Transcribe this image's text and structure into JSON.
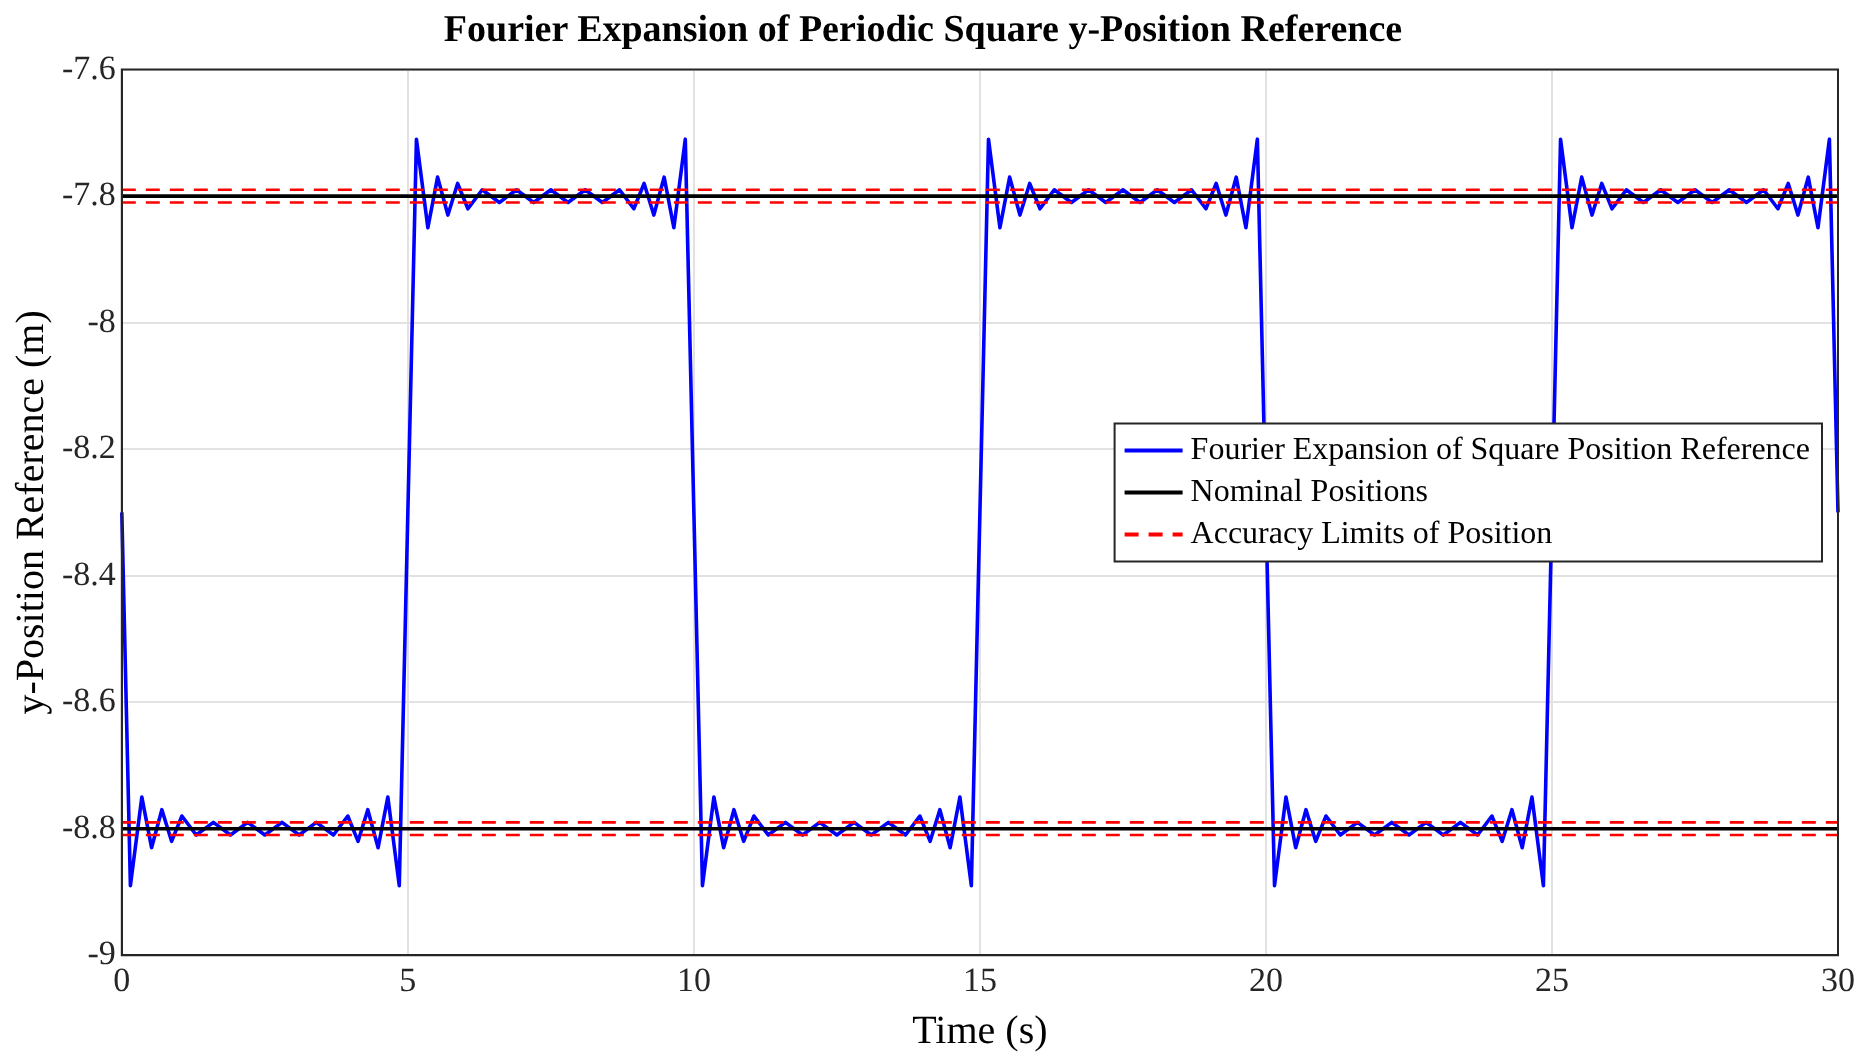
{
  "chart_data": {
    "type": "line",
    "title": "Fourier Expansion of Periodic Square y-Position Reference",
    "xlabel": "Time (s)",
    "ylabel": "y-Position Reference (m)",
    "xlim": [
      0,
      30
    ],
    "xticks": [
      0,
      5,
      10,
      15,
      20,
      25,
      30
    ],
    "ylim": [
      -9,
      -7.6
    ],
    "yticks": [
      -9,
      -8.8,
      -8.6,
      -8.4,
      -8.2,
      -8,
      -7.8,
      -7.6
    ],
    "grid": true,
    "legend": "right",
    "marker": "none",
    "series": [
      {
        "name": "Fourier Expansion of Square Position Reference",
        "color": "#0000ff",
        "line_style": "solid",
        "x": [
          0,
          0.15,
          0.35,
          0.52,
          0.7,
          0.87,
          1.05,
          1.3,
          1.6,
          1.9,
          2.2,
          2.5,
          2.8,
          3.1,
          3.4,
          3.7,
          3.95,
          4.13,
          4.3,
          4.48,
          4.65,
          4.85,
          5,
          5.15,
          5.35,
          5.52,
          5.7,
          5.87,
          6.05,
          6.3,
          6.6,
          6.9,
          7.2,
          7.5,
          7.8,
          8.1,
          8.4,
          8.7,
          8.95,
          9.13,
          9.3,
          9.48,
          9.65,
          9.85,
          10,
          10.15,
          10.35,
          10.52,
          10.7,
          10.87,
          11.05,
          11.3,
          11.6,
          11.9,
          12.2,
          12.5,
          12.8,
          13.1,
          13.4,
          13.7,
          13.95,
          14.13,
          14.3,
          14.48,
          14.65,
          14.85,
          15,
          15.15,
          15.35,
          15.52,
          15.7,
          15.87,
          16.05,
          16.3,
          16.6,
          16.9,
          17.2,
          17.5,
          17.8,
          18.1,
          18.4,
          18.7,
          18.95,
          19.13,
          19.3,
          19.48,
          19.65,
          19.85,
          20,
          20.15,
          20.35,
          20.52,
          20.7,
          20.87,
          21.05,
          21.3,
          21.6,
          21.9,
          22.2,
          22.5,
          22.8,
          23.1,
          23.4,
          23.7,
          23.95,
          24.13,
          24.3,
          24.48,
          24.65,
          24.85,
          25,
          25.15,
          25.35,
          25.52,
          25.7,
          25.87,
          26.05,
          26.3,
          26.6,
          26.9,
          27.2,
          27.5,
          27.8,
          28.1,
          28.4,
          28.7,
          28.95,
          29.13,
          29.3,
          29.48,
          29.65,
          29.85,
          30
        ],
        "values": [
          -8.3,
          -8.89,
          -8.75,
          -8.83,
          -8.77,
          -8.82,
          -8.78,
          -8.81,
          -8.79,
          -8.81,
          -8.79,
          -8.81,
          -8.79,
          -8.81,
          -8.79,
          -8.81,
          -8.78,
          -8.82,
          -8.77,
          -8.83,
          -8.75,
          -8.89,
          -8.3,
          -7.71,
          -7.85,
          -7.77,
          -7.83,
          -7.78,
          -7.82,
          -7.79,
          -7.81,
          -7.79,
          -7.81,
          -7.79,
          -7.81,
          -7.79,
          -7.81,
          -7.79,
          -7.82,
          -7.78,
          -7.83,
          -7.77,
          -7.85,
          -7.71,
          -8.3,
          -8.89,
          -8.75,
          -8.83,
          -8.77,
          -8.82,
          -8.78,
          -8.81,
          -8.79,
          -8.81,
          -8.79,
          -8.81,
          -8.79,
          -8.81,
          -8.79,
          -8.81,
          -8.78,
          -8.82,
          -8.77,
          -8.83,
          -8.75,
          -8.89,
          -8.3,
          -7.71,
          -7.85,
          -7.77,
          -7.83,
          -7.78,
          -7.82,
          -7.79,
          -7.81,
          -7.79,
          -7.81,
          -7.79,
          -7.81,
          -7.79,
          -7.81,
          -7.79,
          -7.82,
          -7.78,
          -7.83,
          -7.77,
          -7.85,
          -7.71,
          null,
          -8.89,
          -8.75,
          -8.83,
          -8.77,
          -8.82,
          -8.78,
          -8.81,
          -8.79,
          -8.81,
          -8.79,
          -8.81,
          -8.79,
          -8.81,
          -8.79,
          -8.81,
          -8.78,
          -8.82,
          -8.77,
          -8.83,
          -8.75,
          -8.89,
          null,
          -7.71,
          -7.85,
          -7.77,
          -7.83,
          -7.78,
          -7.82,
          -7.79,
          -7.81,
          -7.79,
          -7.81,
          -7.79,
          -7.81,
          -7.79,
          -7.81,
          -7.79,
          -7.82,
          -7.78,
          -7.83,
          -7.77,
          -7.85,
          -7.71,
          -8.3
        ]
      },
      {
        "name": "Nominal Positions",
        "color": "#000000",
        "line_style": "solid",
        "x": [
          0,
          30
        ],
        "values": [
          -7.8,
          -7.8
        ]
      },
      {
        "color": "#000000",
        "line_style": "solid",
        "x": [
          0,
          30
        ],
        "values": [
          -8.8,
          -8.8
        ]
      },
      {
        "name": "Accuracy Limits of Position",
        "color": "#ff0000",
        "line_style": "dashed",
        "x": [
          0,
          30
        ],
        "values": [
          -7.79,
          -7.79
        ]
      },
      {
        "color": "#ff0000",
        "line_style": "dashed",
        "x": [
          0,
          30
        ],
        "values": [
          -7.81,
          -7.81
        ]
      },
      {
        "color": "#ff0000",
        "line_style": "dashed",
        "x": [
          0,
          30
        ],
        "values": [
          -8.79,
          -8.79
        ]
      },
      {
        "color": "#ff0000",
        "line_style": "dashed",
        "x": [
          0,
          30
        ],
        "values": [
          -8.81,
          -8.81
        ]
      }
    ]
  }
}
